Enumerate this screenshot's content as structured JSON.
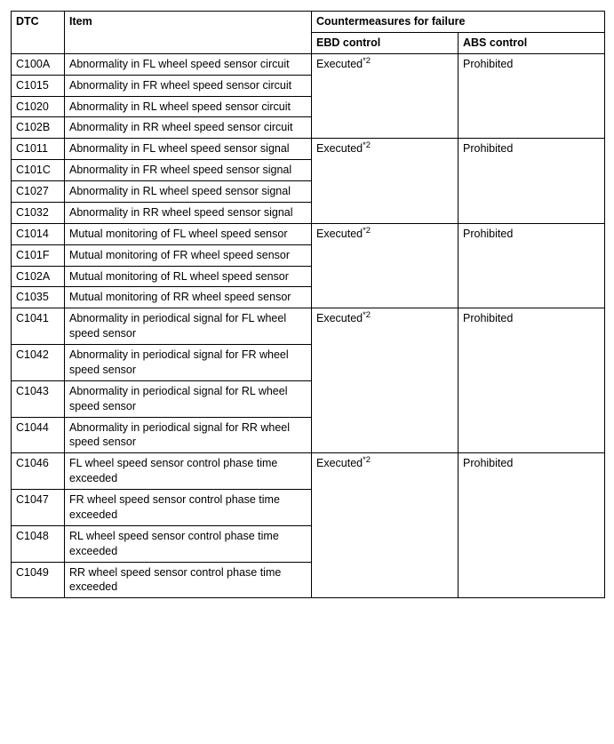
{
  "headers": {
    "dtc": "DTC",
    "item": "Item",
    "countermeasures": "Countermeasures for failure",
    "ebd": "EBD control",
    "abs": "ABS control"
  },
  "ebd_value": "Executed",
  "ebd_sup": "*2",
  "abs_value": "Prohibited",
  "groups": [
    {
      "rows": [
        {
          "dtc": "C100A",
          "item": "Abnormality in FL wheel speed sensor circuit"
        },
        {
          "dtc": "C1015",
          "item": "Abnormality in FR wheel speed sensor circuit"
        },
        {
          "dtc": "C1020",
          "item": "Abnormality in RL wheel speed sensor circuit"
        },
        {
          "dtc": "C102B",
          "item": "Abnormality in RR wheel speed sensor circuit"
        }
      ]
    },
    {
      "rows": [
        {
          "dtc": "C1011",
          "item": "Abnormality in FL wheel speed sensor signal"
        },
        {
          "dtc": "C101C",
          "item": "Abnormality in FR wheel speed sensor signal"
        },
        {
          "dtc": "C1027",
          "item": "Abnormality in RL wheel speed sensor signal"
        },
        {
          "dtc": "C1032",
          "item": "Abnormality in RR wheel speed sensor signal"
        }
      ]
    },
    {
      "rows": [
        {
          "dtc": "C1014",
          "item": "Mutual monitoring of FL wheel speed sensor"
        },
        {
          "dtc": "C101F",
          "item": "Mutual monitoring of FR wheel speed sensor"
        },
        {
          "dtc": "C102A",
          "item": "Mutual monitoring of RL wheel speed sensor"
        },
        {
          "dtc": "C1035",
          "item": "Mutual monitoring of RR wheel speed sensor"
        }
      ]
    },
    {
      "rows": [
        {
          "dtc": "C1041",
          "item": "Abnormality in periodical signal for FL wheel speed sensor"
        },
        {
          "dtc": "C1042",
          "item": "Abnormality in periodical signal for FR wheel speed sensor"
        },
        {
          "dtc": "C1043",
          "item": "Abnormality in periodical signal for RL wheel speed sensor"
        },
        {
          "dtc": "C1044",
          "item": "Abnormality in periodical signal for RR wheel speed sensor"
        }
      ]
    },
    {
      "rows": [
        {
          "dtc": "C1046",
          "item": "FL wheel speed sensor control phase time exceeded"
        },
        {
          "dtc": "C1047",
          "item": "FR wheel speed sensor control phase time exceeded"
        },
        {
          "dtc": "C1048",
          "item": "RL wheel speed sensor control phase time exceeded"
        },
        {
          "dtc": "C1049",
          "item": "RR wheel speed sensor control phase time exceeded"
        }
      ]
    }
  ]
}
